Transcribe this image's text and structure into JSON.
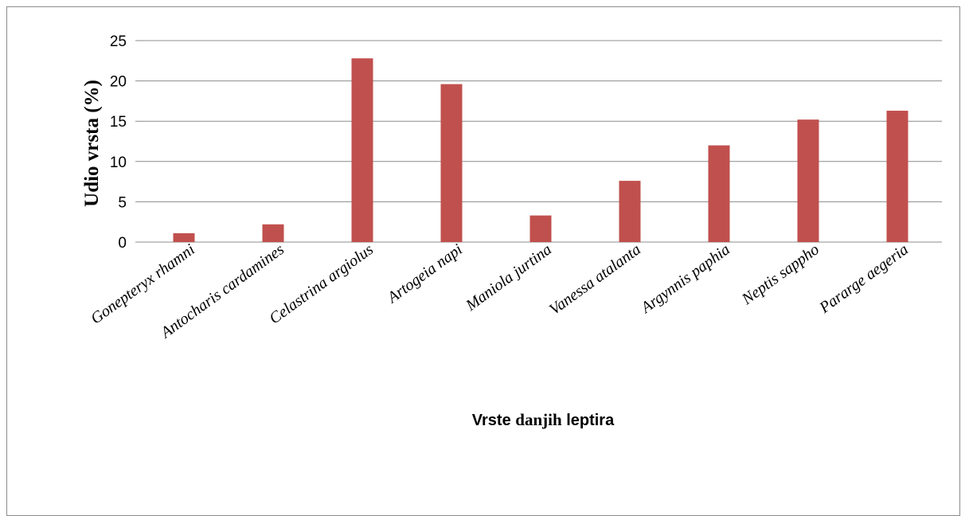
{
  "chart_data": {
    "type": "bar",
    "categories": [
      "Gonepteryx rhamni",
      "Antocharis cardamines",
      "Celastrina argiolus",
      "Artogeia napi",
      "Maniola jurtina",
      "Vanessa atalanta",
      "Argynnis paphia",
      "Neptis sappho",
      "Pararge aegeria"
    ],
    "values": [
      1.1,
      2.2,
      22.8,
      19.6,
      3.3,
      7.6,
      12.0,
      15.2,
      16.3
    ],
    "ylabel": "Udio vrsta (%)",
    "xlabel_parts": [
      "Vrste ",
      "danjih",
      " leptira"
    ],
    "ylim": [
      0,
      25
    ],
    "yticks": [
      0,
      5,
      10,
      15,
      20,
      25
    ],
    "grid": true,
    "legend": "none",
    "bar_color": "#c0504d",
    "grid_color": "#8c8c8c"
  }
}
